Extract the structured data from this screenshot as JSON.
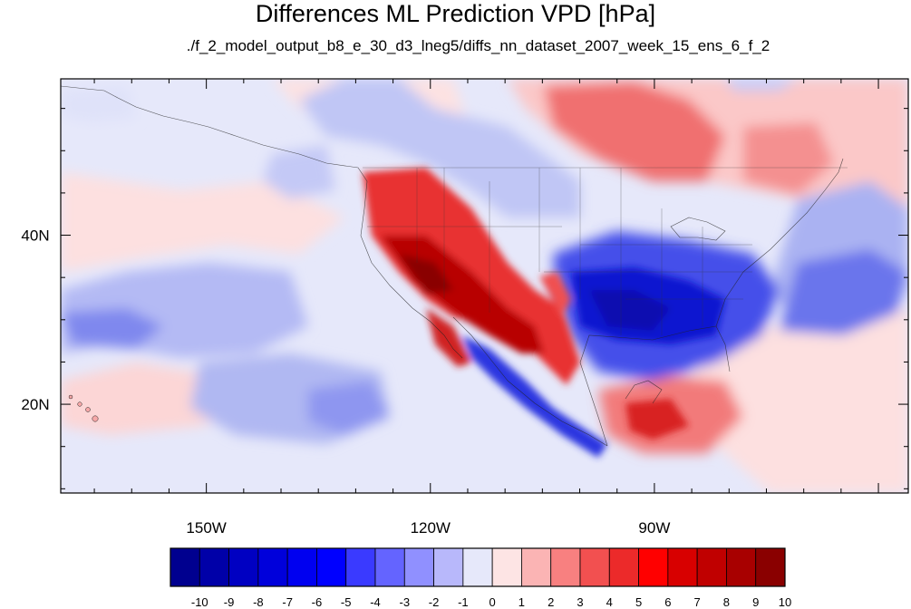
{
  "title": "Differences ML Prediction VPD [hPa]",
  "subtitle": "./f_2_model_output_b8_e_30_d3_lneg5/diffs_nn_dataset_2007_week_15_ens_6_f_2",
  "map": {
    "lon_range": [
      -169.5,
      -56.0
    ],
    "lat_range": [
      9.5,
      58.5
    ],
    "lon_ticks": [
      {
        "value": -150,
        "label": "150W"
      },
      {
        "value": -120,
        "label": "120W"
      },
      {
        "value": -90,
        "label": "90W"
      }
    ],
    "lat_ticks": [
      {
        "value": 40,
        "label": "40N"
      },
      {
        "value": 20,
        "label": "20N"
      }
    ],
    "colors": {
      "strong_red": "#a00000",
      "red": "#e83030",
      "light_red": "#f6a8a8",
      "pale_red": "#fde4e4",
      "pale_blue": "#e6e8fa",
      "light_blue": "#aab2f2",
      "blue": "#5a66ea",
      "strong_blue": "#1018d0"
    }
  },
  "colorbar": {
    "labels": [
      "-10",
      "-9",
      "-8",
      "-7",
      "-6",
      "-5",
      "-4",
      "-3",
      "-2",
      "-1",
      "0",
      "1",
      "2",
      "3",
      "4",
      "5",
      "6",
      "7",
      "8",
      "9",
      "10"
    ],
    "colors": [
      "#00008f",
      "#0000a8",
      "#0000c2",
      "#0000db",
      "#0000f0",
      "#0000ff",
      "#3a3aff",
      "#6464ff",
      "#9090ff",
      "#b8b8fb",
      "#e6e8fa",
      "#fde4e4",
      "#fbb4b4",
      "#f88080",
      "#f25050",
      "#ec2a2a",
      "#ff0000",
      "#d80000",
      "#c00000",
      "#a80000",
      "#8a0000"
    ]
  }
}
